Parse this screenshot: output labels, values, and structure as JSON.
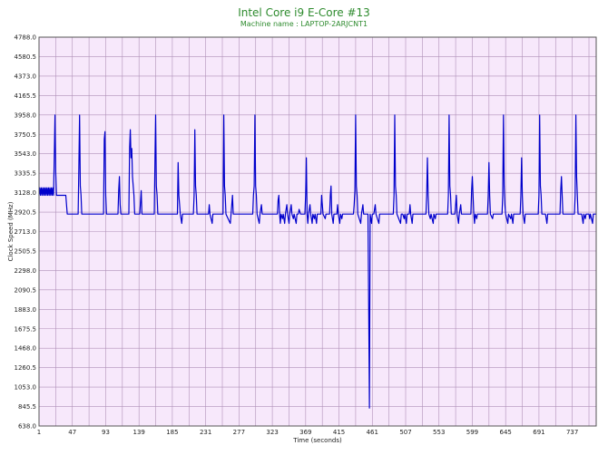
{
  "chart_data": {
    "type": "line",
    "title": "Intel Core i9 E-Core #13",
    "subtitle": "Machine name : LAPTOP-2ARJCNT1",
    "xlabel": "Time (seconds)",
    "ylabel": "Clock Speed (MHz)",
    "xlim": [
      1,
      770
    ],
    "ylim": [
      638.0,
      4788.0
    ],
    "x_ticks": [
      1,
      47,
      93,
      139,
      185,
      231,
      277,
      323,
      369,
      415,
      461,
      507,
      553,
      599,
      645,
      691,
      737
    ],
    "y_ticks": [
      "638.0",
      "845.5",
      "1053.0",
      "1260.5",
      "1468.0",
      "1675.5",
      "1883.0",
      "2090.5",
      "2298.0",
      "2505.5",
      "2713.0",
      "2920.5",
      "3128.0",
      "3335.5",
      "3543.0",
      "3750.5",
      "3958.0",
      "4165.5",
      "4373.0",
      "4580.5",
      "4788.0"
    ],
    "grid": true,
    "colors": {
      "line": "#0000cc",
      "plot_bg": "#f7e8fb",
      "grid": "#b090b8",
      "title": "#2e8b2e"
    },
    "series": [
      {
        "baseline": 2900,
        "points": [
          [
            1,
            3100
          ],
          [
            2,
            3180
          ],
          [
            3,
            3100
          ],
          [
            4,
            3180
          ],
          [
            5,
            3100
          ],
          [
            6,
            3180
          ],
          [
            7,
            3100
          ],
          [
            8,
            3180
          ],
          [
            9,
            3100
          ],
          [
            10,
            3180
          ],
          [
            11,
            3100
          ],
          [
            12,
            3180
          ],
          [
            13,
            3100
          ],
          [
            14,
            3180
          ],
          [
            15,
            3100
          ],
          [
            16,
            3180
          ],
          [
            17,
            3100
          ],
          [
            18,
            3180
          ],
          [
            19,
            3100
          ],
          [
            20,
            3180
          ],
          [
            21,
            3100
          ],
          [
            22,
            3500
          ],
          [
            23,
            3958
          ],
          [
            24,
            3350
          ],
          [
            25,
            3100
          ],
          [
            30,
            3100
          ],
          [
            35,
            3100
          ],
          [
            38,
            3100
          ],
          [
            40,
            2900
          ],
          [
            50,
            2900
          ],
          [
            55,
            2900
          ],
          [
            56,
            3400
          ],
          [
            57,
            3958
          ],
          [
            58,
            3200
          ],
          [
            59,
            3100
          ],
          [
            60,
            2900
          ],
          [
            90,
            2900
          ],
          [
            91,
            3700
          ],
          [
            92,
            3780
          ],
          [
            93,
            3100
          ],
          [
            94,
            2900
          ],
          [
            110,
            2900
          ],
          [
            111,
            3150
          ],
          [
            112,
            3300
          ],
          [
            113,
            3000
          ],
          [
            114,
            2900
          ],
          [
            125,
            2900
          ],
          [
            126,
            3600
          ],
          [
            127,
            3800
          ],
          [
            128,
            3500
          ],
          [
            129,
            3600
          ],
          [
            130,
            3300
          ],
          [
            131,
            3200
          ],
          [
            132,
            3100
          ],
          [
            133,
            2900
          ],
          [
            140,
            2900
          ],
          [
            142,
            3150
          ],
          [
            143,
            2900
          ],
          [
            160,
            2900
          ],
          [
            161,
            3500
          ],
          [
            162,
            3958
          ],
          [
            163,
            3200
          ],
          [
            164,
            3100
          ],
          [
            165,
            2900
          ],
          [
            192,
            2900
          ],
          [
            193,
            3450
          ],
          [
            194,
            3100
          ],
          [
            195,
            3000
          ],
          [
            196,
            2900
          ],
          [
            198,
            2800
          ],
          [
            199,
            2900
          ],
          [
            214,
            2900
          ],
          [
            215,
            3100
          ],
          [
            216,
            3800
          ],
          [
            217,
            3200
          ],
          [
            218,
            3100
          ],
          [
            219,
            2900
          ],
          [
            235,
            2900
          ],
          [
            236,
            3000
          ],
          [
            237,
            2900
          ],
          [
            240,
            2800
          ],
          [
            241,
            2900
          ],
          [
            255,
            2900
          ],
          [
            256,
            3958
          ],
          [
            257,
            3200
          ],
          [
            258,
            3100
          ],
          [
            259,
            2900
          ],
          [
            265,
            2800
          ],
          [
            266,
            2900
          ],
          [
            268,
            3100
          ],
          [
            269,
            2900
          ],
          [
            296,
            2900
          ],
          [
            297,
            3100
          ],
          [
            298,
            3200
          ],
          [
            299,
            3958
          ],
          [
            300,
            3200
          ],
          [
            301,
            3100
          ],
          [
            302,
            2900
          ],
          [
            305,
            2800
          ],
          [
            306,
            2900
          ],
          [
            308,
            3000
          ],
          [
            309,
            2900
          ],
          [
            330,
            2900
          ],
          [
            331,
            3050
          ],
          [
            332,
            3100
          ],
          [
            333,
            2900
          ],
          [
            334,
            2800
          ],
          [
            335,
            2900
          ],
          [
            337,
            2850
          ],
          [
            338,
            2900
          ],
          [
            340,
            2800
          ],
          [
            341,
            2900
          ],
          [
            343,
            3000
          ],
          [
            344,
            2900
          ],
          [
            346,
            2800
          ],
          [
            347,
            2900
          ],
          [
            349,
            3000
          ],
          [
            350,
            2900
          ],
          [
            352,
            2850
          ],
          [
            353,
            2900
          ],
          [
            356,
            2800
          ],
          [
            357,
            2900
          ],
          [
            359,
            2900
          ],
          [
            360,
            2950
          ],
          [
            362,
            2900
          ],
          [
            368,
            2900
          ],
          [
            369,
            3100
          ],
          [
            370,
            3500
          ],
          [
            371,
            2900
          ],
          [
            372,
            2800
          ],
          [
            373,
            2900
          ],
          [
            375,
            3000
          ],
          [
            376,
            2900
          ],
          [
            378,
            2800
          ],
          [
            379,
            2900
          ],
          [
            381,
            2850
          ],
          [
            382,
            2900
          ],
          [
            384,
            2800
          ],
          [
            385,
            2900
          ],
          [
            390,
            2900
          ],
          [
            391,
            3100
          ],
          [
            392,
            3000
          ],
          [
            393,
            2900
          ],
          [
            396,
            2850
          ],
          [
            397,
            2900
          ],
          [
            402,
            2900
          ],
          [
            403,
            3100
          ],
          [
            404,
            3200
          ],
          [
            405,
            2900
          ],
          [
            407,
            2800
          ],
          [
            408,
            2900
          ],
          [
            412,
            2900
          ],
          [
            413,
            3000
          ],
          [
            414,
            2900
          ],
          [
            416,
            2800
          ],
          [
            417,
            2900
          ],
          [
            419,
            2850
          ],
          [
            420,
            2900
          ],
          [
            435,
            2900
          ],
          [
            436,
            3000
          ],
          [
            437,
            3150
          ],
          [
            438,
            3958
          ],
          [
            439,
            3200
          ],
          [
            440,
            3100
          ],
          [
            441,
            2900
          ],
          [
            445,
            2800
          ],
          [
            446,
            2900
          ],
          [
            448,
            3000
          ],
          [
            449,
            2900
          ],
          [
            455,
            2900
          ],
          [
            456,
            1900
          ],
          [
            457,
            830
          ],
          [
            458,
            2900
          ],
          [
            460,
            2800
          ],
          [
            461,
            2900
          ],
          [
            463,
            2900
          ],
          [
            465,
            3000
          ],
          [
            466,
            2900
          ],
          [
            470,
            2800
          ],
          [
            471,
            2900
          ],
          [
            490,
            2900
          ],
          [
            491,
            3100
          ],
          [
            492,
            3958
          ],
          [
            493,
            3200
          ],
          [
            494,
            3100
          ],
          [
            495,
            2900
          ],
          [
            500,
            2800
          ],
          [
            501,
            2900
          ],
          [
            503,
            2900
          ],
          [
            505,
            2850
          ],
          [
            506,
            2900
          ],
          [
            508,
            2800
          ],
          [
            509,
            2900
          ],
          [
            512,
            2900
          ],
          [
            513,
            3000
          ],
          [
            514,
            2900
          ],
          [
            516,
            2800
          ],
          [
            517,
            2900
          ],
          [
            535,
            2900
          ],
          [
            536,
            3100
          ],
          [
            537,
            3500
          ],
          [
            538,
            3100
          ],
          [
            539,
            2900
          ],
          [
            541,
            2850
          ],
          [
            542,
            2900
          ],
          [
            545,
            2800
          ],
          [
            546,
            2900
          ],
          [
            548,
            2850
          ],
          [
            549,
            2900
          ],
          [
            565,
            2900
          ],
          [
            566,
            3100
          ],
          [
            567,
            3958
          ],
          [
            568,
            3200
          ],
          [
            569,
            3100
          ],
          [
            570,
            2900
          ],
          [
            575,
            2900
          ],
          [
            577,
            3100
          ],
          [
            578,
            2900
          ],
          [
            580,
            2800
          ],
          [
            581,
            2900
          ],
          [
            583,
            3000
          ],
          [
            584,
            2900
          ],
          [
            597,
            2900
          ],
          [
            598,
            3150
          ],
          [
            599,
            3300
          ],
          [
            600,
            3100
          ],
          [
            601,
            2900
          ],
          [
            602,
            2800
          ],
          [
            603,
            2900
          ],
          [
            605,
            2850
          ],
          [
            606,
            2900
          ],
          [
            620,
            2900
          ],
          [
            621,
            3100
          ],
          [
            622,
            3450
          ],
          [
            623,
            3100
          ],
          [
            624,
            2900
          ],
          [
            627,
            2850
          ],
          [
            628,
            2900
          ],
          [
            640,
            2900
          ],
          [
            641,
            3100
          ],
          [
            642,
            3958
          ],
          [
            643,
            3200
          ],
          [
            644,
            3000
          ],
          [
            645,
            2900
          ],
          [
            648,
            2800
          ],
          [
            649,
            2900
          ],
          [
            652,
            2850
          ],
          [
            653,
            2900
          ],
          [
            655,
            2800
          ],
          [
            656,
            2900
          ],
          [
            665,
            2900
          ],
          [
            666,
            3100
          ],
          [
            667,
            3500
          ],
          [
            668,
            3100
          ],
          [
            669,
            2900
          ],
          [
            671,
            2800
          ],
          [
            672,
            2900
          ],
          [
            690,
            2900
          ],
          [
            691,
            3100
          ],
          [
            692,
            3958
          ],
          [
            693,
            3200
          ],
          [
            694,
            3100
          ],
          [
            695,
            2900
          ],
          [
            700,
            2900
          ],
          [
            702,
            2800
          ],
          [
            703,
            2900
          ],
          [
            720,
            2900
          ],
          [
            721,
            3150
          ],
          [
            722,
            3300
          ],
          [
            723,
            3100
          ],
          [
            724,
            2900
          ],
          [
            740,
            2900
          ],
          [
            741,
            3100
          ],
          [
            742,
            3958
          ],
          [
            743,
            3300
          ],
          [
            744,
            3100
          ],
          [
            745,
            2900
          ],
          [
            750,
            2900
          ],
          [
            752,
            2800
          ],
          [
            753,
            2900
          ],
          [
            755,
            2850
          ],
          [
            756,
            2900
          ],
          [
            760,
            2900
          ],
          [
            761,
            2850
          ],
          [
            762,
            2900
          ],
          [
            765,
            2800
          ],
          [
            766,
            2900
          ],
          [
            770,
            2900
          ]
        ]
      }
    ]
  }
}
